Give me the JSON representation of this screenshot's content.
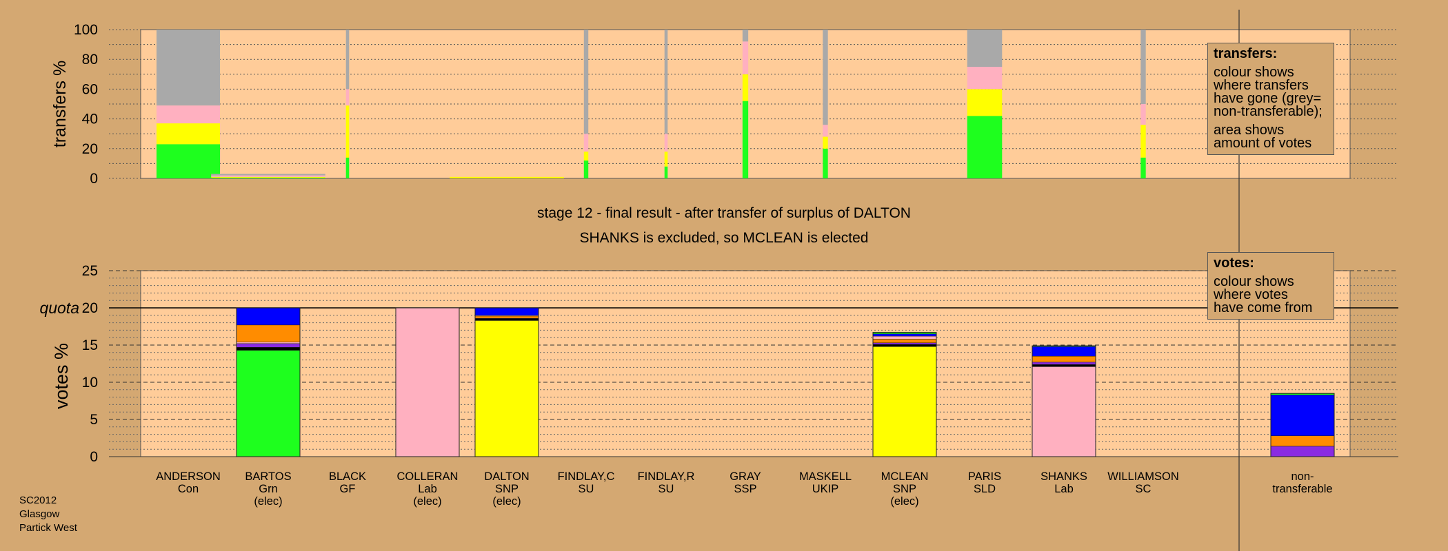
{
  "stage_line1": "stage 12 - final result - after transfer of surplus of DALTON",
  "stage_line2": "SHANKS is excluded, so MCLEAN is elected",
  "footer": [
    "SC2012",
    "Glasgow",
    "Partick West"
  ],
  "legend_transfers": {
    "title": "transfers:",
    "lines": [
      "colour shows",
      "where transfers",
      "have gone (grey=",
      "non-transferable);"
    ],
    "lines2": [
      "area shows",
      "amount of votes"
    ]
  },
  "legend_votes": {
    "title": "votes:",
    "lines": [
      "colour shows",
      "where votes",
      "have come from"
    ]
  },
  "colors": {
    "background": "#D4A872",
    "plot_bg": "#FFCC99",
    "green": "#1EFF1E",
    "purple": "#8A2BE2",
    "orange": "#FF8C00",
    "blue": "#0000FF",
    "pink": "#FFB0C0",
    "yellow": "#FFFF00",
    "grey": "#A9A9A9",
    "black": "#000000"
  },
  "chart_data": [
    {
      "type": "bar",
      "ylabel": "transfers %",
      "ylim": [
        0,
        100
      ],
      "yticks": [
        0,
        20,
        40,
        60,
        80,
        100
      ],
      "candidates": [
        {
          "name": "ANDERSON",
          "party": "Con",
          "width": 1.0,
          "segments": [
            {
              "color": "green",
              "value": 23
            },
            {
              "color": "yellow",
              "value": 14
            },
            {
              "color": "pink",
              "value": 12
            },
            {
              "color": "grey",
              "value": 51
            }
          ]
        },
        {
          "name": "BARTOS",
          "party": "Grn",
          "width": 1.8,
          "segments": [
            {
              "color": "green",
              "value": 0.5
            },
            {
              "color": "yellow",
              "value": 0.5
            },
            {
              "color": "pink",
              "value": 1
            },
            {
              "color": "grey",
              "value": 1
            }
          ]
        },
        {
          "name": "BLACK",
          "party": "GF",
          "width": 0.05,
          "segments": [
            {
              "color": "green",
              "value": 14
            },
            {
              "color": "yellow",
              "value": 35
            },
            {
              "color": "pink",
              "value": 11
            },
            {
              "color": "grey",
              "value": 40
            }
          ]
        },
        {
          "name": "COLLERAN",
          "party": "Lab",
          "width": 0,
          "segments": []
        },
        {
          "name": "DALTON",
          "party": "SNP",
          "width": 1.8,
          "segments": [
            {
              "color": "yellow",
              "value": 1
            }
          ]
        },
        {
          "name": "FINDLAY,C",
          "party": "SU",
          "width": 0.07,
          "segments": [
            {
              "color": "green",
              "value": 12
            },
            {
              "color": "yellow",
              "value": 6
            },
            {
              "color": "pink",
              "value": 12
            },
            {
              "color": "grey",
              "value": 70
            }
          ]
        },
        {
          "name": "FINDLAY,R",
          "party": "SU",
          "width": 0.05,
          "segments": [
            {
              "color": "green",
              "value": 8
            },
            {
              "color": "yellow",
              "value": 10
            },
            {
              "color": "pink",
              "value": 12
            },
            {
              "color": "grey",
              "value": 70
            }
          ]
        },
        {
          "name": "GRAY",
          "party": "SSP",
          "width": 0.09,
          "segments": [
            {
              "color": "green",
              "value": 52
            },
            {
              "color": "yellow",
              "value": 18
            },
            {
              "color": "pink",
              "value": 22
            },
            {
              "color": "grey",
              "value": 8
            }
          ]
        },
        {
          "name": "MASKELL",
          "party": "UKIP",
          "width": 0.08,
          "segments": [
            {
              "color": "green",
              "value": 20
            },
            {
              "color": "yellow",
              "value": 8
            },
            {
              "color": "pink",
              "value": 8
            },
            {
              "color": "grey",
              "value": 64
            }
          ]
        },
        {
          "name": "MCLEAN",
          "party": "SNP",
          "width": 0,
          "segments": []
        },
        {
          "name": "PARIS",
          "party": "SLD",
          "width": 0.55,
          "segments": [
            {
              "color": "green",
              "value": 42
            },
            {
              "color": "yellow",
              "value": 18
            },
            {
              "color": "pink",
              "value": 15
            },
            {
              "color": "grey",
              "value": 25
            }
          ]
        },
        {
          "name": "SHANKS",
          "party": "Lab",
          "width": 0,
          "segments": []
        },
        {
          "name": "WILLIAMSON",
          "party": "SC",
          "width": 0.08,
          "segments": [
            {
              "color": "green",
              "value": 14
            },
            {
              "color": "yellow",
              "value": 22
            },
            {
              "color": "pink",
              "value": 14
            },
            {
              "color": "grey",
              "value": 50
            }
          ]
        }
      ]
    },
    {
      "type": "bar",
      "ylabel": "votes %",
      "ylim": [
        0,
        25
      ],
      "yticks": [
        0,
        5,
        10,
        15,
        20,
        25
      ],
      "quota": 20,
      "quota_label": "quota",
      "categories": [
        {
          "name": "ANDERSON",
          "party": "Con",
          "note": "",
          "segments": []
        },
        {
          "name": "BARTOS",
          "party": "Grn",
          "note": "(elec)",
          "segments": [
            {
              "color": "green",
              "value": 14.3
            },
            {
              "color": "black",
              "value": 0.4
            },
            {
              "color": "purple",
              "value": 0.5
            },
            {
              "color": "pink",
              "value": 0.2
            },
            {
              "color": "orange",
              "value": 2.3
            },
            {
              "color": "blue",
              "value": 2.3
            }
          ]
        },
        {
          "name": "BLACK",
          "party": "GF",
          "note": "",
          "segments": []
        },
        {
          "name": "COLLERAN",
          "party": "Lab",
          "note": "(elec)",
          "segments": [
            {
              "color": "pink",
              "value": 20
            }
          ]
        },
        {
          "name": "DALTON",
          "party": "SNP",
          "note": "(elec)",
          "segments": [
            {
              "color": "yellow",
              "value": 18.3
            },
            {
              "color": "black",
              "value": 0.3
            },
            {
              "color": "orange",
              "value": 0.3
            },
            {
              "color": "pink",
              "value": 0.1
            },
            {
              "color": "blue",
              "value": 1.0
            }
          ]
        },
        {
          "name": "FINDLAY,C",
          "party": "SU",
          "note": "",
          "segments": []
        },
        {
          "name": "FINDLAY,R",
          "party": "SU",
          "note": "",
          "segments": []
        },
        {
          "name": "GRAY",
          "party": "SSP",
          "note": "",
          "segments": []
        },
        {
          "name": "MASKELL",
          "party": "UKIP",
          "note": "",
          "segments": []
        },
        {
          "name": "MCLEAN",
          "party": "SNP",
          "note": "(elec)",
          "segments": [
            {
              "color": "yellow",
              "value": 14.8
            },
            {
              "color": "black",
              "value": 0.3
            },
            {
              "color": "purple",
              "value": 0.2
            },
            {
              "color": "orange",
              "value": 0.5
            },
            {
              "color": "pink",
              "value": 0.4
            },
            {
              "color": "blue",
              "value": 0.3
            },
            {
              "color": "green",
              "value": 0.2
            }
          ]
        },
        {
          "name": "PARIS",
          "party": "SLD",
          "note": "",
          "segments": []
        },
        {
          "name": "SHANKS",
          "party": "Lab",
          "note": "",
          "segments": [
            {
              "color": "pink",
              "value": 12.1
            },
            {
              "color": "black",
              "value": 0.3
            },
            {
              "color": "purple",
              "value": 0.3
            },
            {
              "color": "orange",
              "value": 0.8
            },
            {
              "color": "blue",
              "value": 1.3
            },
            {
              "color": "green",
              "value": 0.1
            }
          ]
        },
        {
          "name": "WILLIAMSON",
          "party": "SC",
          "note": "",
          "segments": []
        }
      ],
      "nontransferable": {
        "label1": "non-",
        "label2": "transferable",
        "segments": [
          {
            "color": "purple",
            "value": 1.4
          },
          {
            "color": "orange",
            "value": 1.4
          },
          {
            "color": "blue",
            "value": 5.5
          },
          {
            "color": "green",
            "value": 0.2
          }
        ]
      }
    }
  ]
}
